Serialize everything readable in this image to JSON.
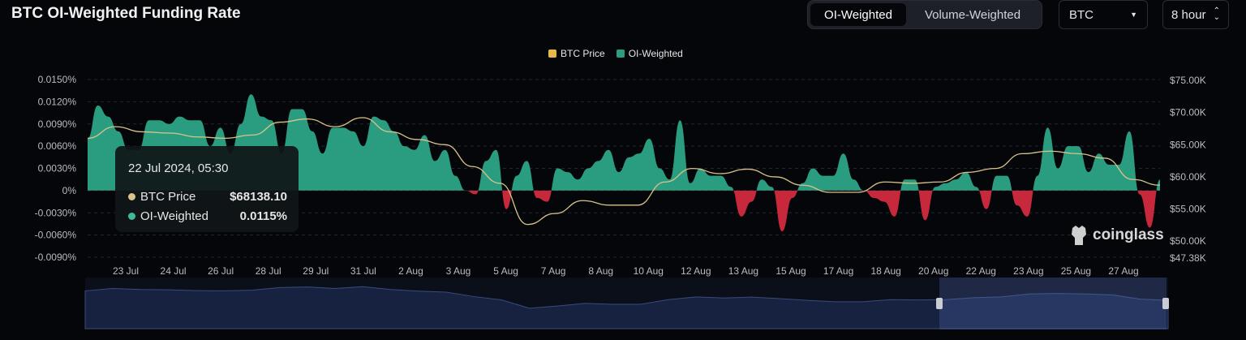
{
  "header": {
    "title": "BTC OI-Weighted Funding Rate",
    "tabs": [
      "OI-Weighted",
      "Volume-Weighted"
    ],
    "active_tab": "OI-Weighted",
    "symbol": "BTC",
    "interval": "8 hour"
  },
  "tooltip": {
    "date": "22 Jul 2024, 05:30",
    "rows": [
      {
        "label": "BTC Price",
        "value": "$68138.10"
      },
      {
        "label": "OI-Weighted",
        "value": "0.0115%"
      }
    ]
  },
  "watermark": "coinglass",
  "chart_data": {
    "type": "area",
    "title": "BTC OI-Weighted Funding Rate",
    "legend": [
      {
        "name": "BTC Price",
        "color": "#e8b84a"
      },
      {
        "name": "OI-Weighted",
        "color": "#2a9d80"
      }
    ],
    "legend_position": "top-center",
    "negative_color": "#c8283c",
    "x_ticks": [
      "23 Jul",
      "24 Jul",
      "26 Jul",
      "28 Jul",
      "29 Jul",
      "31 Jul",
      "2 Aug",
      "3 Aug",
      "5 Aug",
      "7 Aug",
      "8 Aug",
      "10 Aug",
      "12 Aug",
      "13 Aug",
      "15 Aug",
      "17 Aug",
      "18 Aug",
      "20 Aug",
      "22 Aug",
      "23 Aug",
      "25 Aug",
      "27 Aug"
    ],
    "y_left": {
      "ticks": [
        "0.0150%",
        "0.0120%",
        "0.0090%",
        "0.0060%",
        "0.0030%",
        "0%",
        "-0.0030%",
        "-0.0060%",
        "-0.0090%"
      ],
      "range": [
        -0.009,
        0.015
      ]
    },
    "y_right": {
      "ticks": [
        "$75.00K",
        "$70.00K",
        "$65.00K",
        "$60.00K",
        "$55.00K",
        "$50.00K",
        "$47.38K"
      ],
      "range": [
        47.38,
        75
      ]
    },
    "series": [
      {
        "name": "OI-Weighted",
        "unit": "%",
        "values": [
          0.007,
          0.0115,
          0.01,
          0.008,
          0.0055,
          0.0055,
          0.0095,
          0.0095,
          0.009,
          0.01,
          0.0095,
          0.0095,
          0.006,
          0.0085,
          0.005,
          0.009,
          0.013,
          0.01,
          0.0095,
          0.005,
          0.011,
          0.011,
          0.008,
          0.005,
          0.0085,
          0.0085,
          0.008,
          0.006,
          0.01,
          0.0095,
          0.008,
          0.006,
          0.0055,
          0.0075,
          0.004,
          0.0055,
          0.002,
          0,
          -0.0005,
          0.004,
          0.0055,
          -0.0025,
          0.002,
          0.004,
          -0.001,
          -0.0015,
          0.003,
          0.0025,
          0.0015,
          0.003,
          0.004,
          0.0055,
          0.0025,
          0.0045,
          0.005,
          0.007,
          0.003,
          0.0015,
          0.0095,
          0.001,
          0.003,
          0.002,
          0.002,
          0.0005,
          -0.0035,
          -0.0015,
          0.0015,
          0.0005,
          -0.0055,
          -0.001,
          0.001,
          0.003,
          0.002,
          0.002,
          0.005,
          0.0015,
          0,
          -0.001,
          -0.0015,
          -0.0035,
          0.0015,
          0.0015,
          -0.004,
          0.0005,
          0.001,
          0.0015,
          0.0025,
          0.0005,
          -0.0025,
          0.002,
          0.002,
          -0.002,
          -0.0035,
          0.002,
          0.0085,
          0.003,
          0.006,
          0.006,
          0.0025,
          0.005,
          0.0035,
          0.0035,
          0.008,
          -0.0005,
          -0.005,
          0.0015
        ]
      },
      {
        "name": "BTC Price",
        "unit": "$K",
        "values": [
          66,
          67.8,
          67,
          66.8,
          66.2,
          66,
          66.5,
          68.5,
          69,
          67.8,
          69.2,
          67,
          65.8,
          65,
          61.6,
          59,
          52.6,
          54.3,
          56.3,
          55.6,
          55.6,
          59.2,
          61.3,
          60.5,
          61.2,
          60,
          58.7,
          57.6,
          57.6,
          59.2,
          59,
          59.2,
          60.7,
          61.3,
          63.6,
          64,
          63.6,
          62.9,
          59.6,
          58.7
        ]
      }
    ]
  }
}
